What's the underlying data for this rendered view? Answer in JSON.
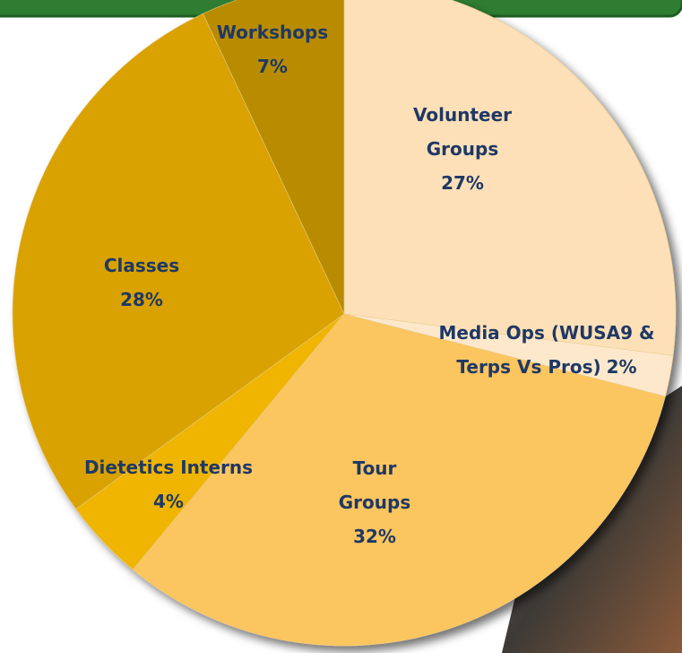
{
  "chart_data": {
    "type": "pie",
    "categories": [
      "Volunteer Groups",
      "Media Ops (WUSA9 & Terps Vs Pros)",
      "Tour Groups",
      "Dietetics Interns",
      "Classes",
      "Workshops"
    ],
    "values": [
      27,
      2,
      32,
      4,
      28,
      7
    ],
    "value_labels": [
      "27%",
      "2%",
      "32%",
      "4%",
      "28%",
      "7%"
    ],
    "colors": [
      "#fde0b8",
      "#fde8cc",
      "#fbc55e",
      "#efb500",
      "#d9a200",
      "#b98c00"
    ]
  }
}
